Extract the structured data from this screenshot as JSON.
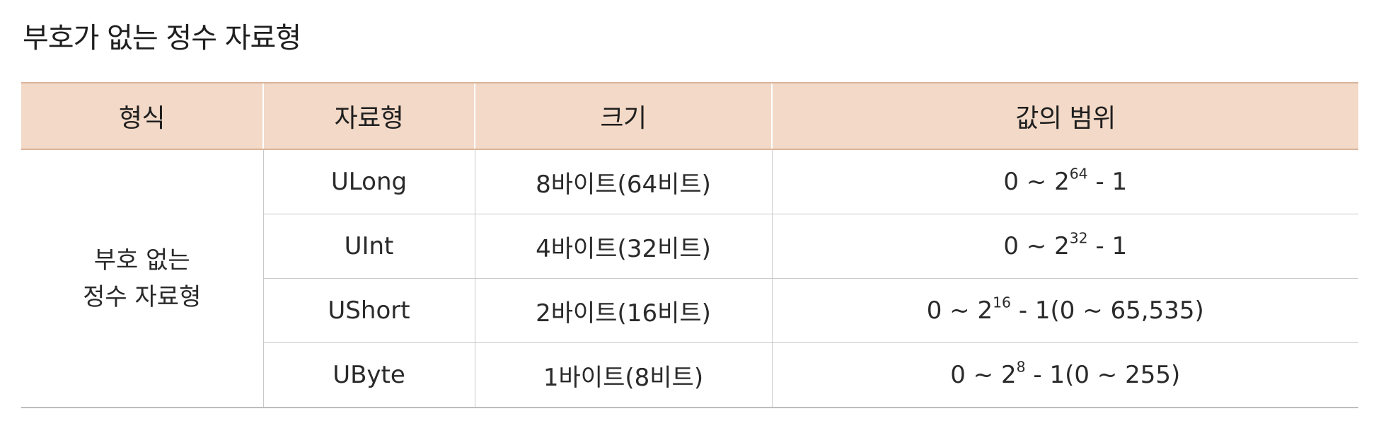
{
  "title": "부호가 없는 정수 자료형",
  "table": {
    "headers": [
      "형식",
      "자료형",
      "크기",
      "값의 범위"
    ],
    "format_lines": [
      "부호 없는",
      "정수 자료형"
    ],
    "rows": [
      {
        "type": "ULong",
        "size": "8바이트(64비트)",
        "range_base": "0 ~ 2",
        "range_exp": "64",
        "range_tail": " - 1"
      },
      {
        "type": "UInt",
        "size": "4바이트(32비트)",
        "range_base": "0 ~ 2",
        "range_exp": "32",
        "range_tail": " - 1"
      },
      {
        "type": "UShort",
        "size": "2바이트(16비트)",
        "range_base": "0 ~ 2",
        "range_exp": "16",
        "range_tail": " - 1(0 ~ 65,535)"
      },
      {
        "type": "UByte",
        "size": "1바이트(8비트)",
        "range_base": "0 ~ 2",
        "range_exp": "8",
        "range_tail": " - 1(0 ~ 255)"
      }
    ]
  },
  "colors": {
    "header_background": "#f3d9c7",
    "header_border": "#d9b49a",
    "grid_lines": "#c9c9c9"
  }
}
